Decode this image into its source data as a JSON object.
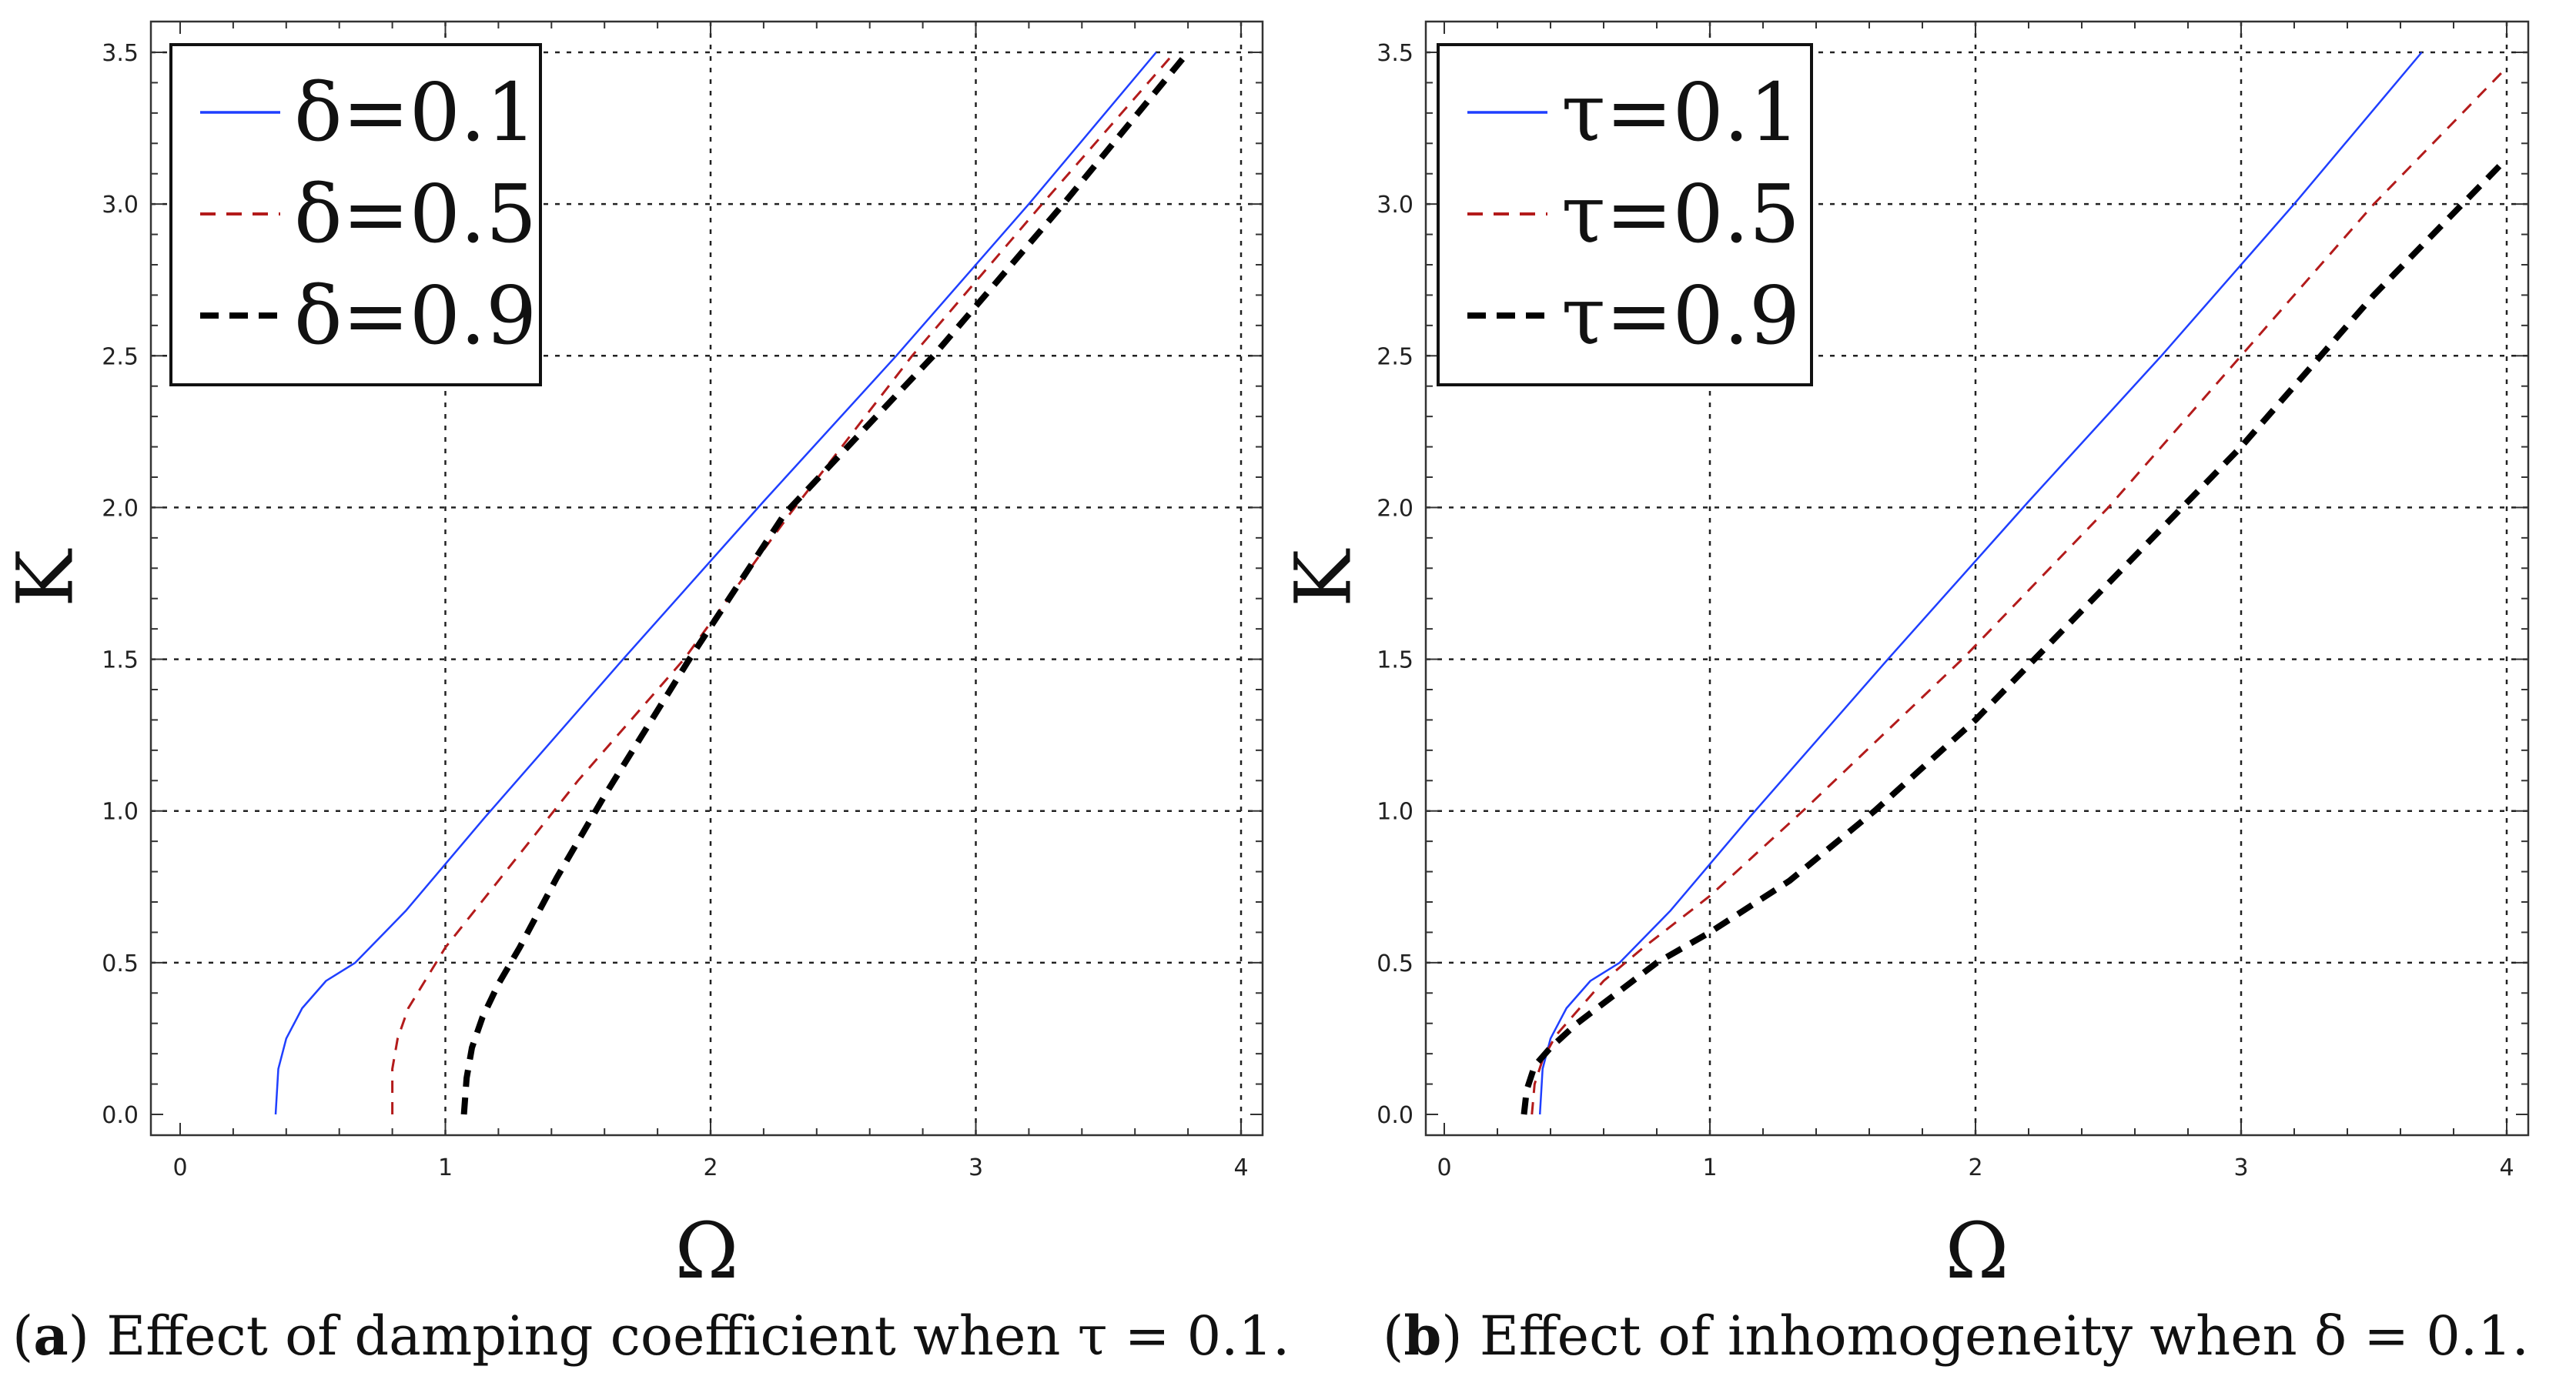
{
  "chart_data": [
    {
      "type": "line",
      "id": "a",
      "caption_label": "a",
      "caption_text": ") Effect of damping coefficient when τ = 0.1.",
      "xlabel": "Ω",
      "ylabel": "K",
      "xlim": [
        0,
        4
      ],
      "ylim": [
        0,
        3.5
      ],
      "xticks": [
        0,
        1,
        2,
        3,
        4
      ],
      "xtick_labels": [
        "0",
        "1",
        "2",
        "3",
        "4"
      ],
      "yticks": [
        0,
        0.5,
        1,
        1.5,
        2,
        2.5,
        3,
        3.5
      ],
      "ytick_labels": [
        "0.0",
        "0.5",
        "1.0",
        "1.5",
        "2.0",
        "2.5",
        "3.0",
        "3.5"
      ],
      "grid": true,
      "legend_position": "top-left",
      "series": [
        {
          "name": "δ=0.1",
          "color": "#1f3fff",
          "style": "solid",
          "width": 2.5,
          "x": [
            0.36,
            0.37,
            0.4,
            0.46,
            0.55,
            0.66,
            0.85,
            1.15,
            1.67,
            2.2,
            2.7,
            3.2,
            3.68
          ],
          "y": [
            0.0,
            0.15,
            0.25,
            0.35,
            0.44,
            0.5,
            0.67,
            0.98,
            1.5,
            2.02,
            2.5,
            3.0,
            3.5
          ]
        },
        {
          "name": "δ=0.5",
          "color": "#b31b1b",
          "style": "dashed",
          "width": 3,
          "x": [
            0.8,
            0.8,
            0.82,
            0.86,
            0.93,
            1.0,
            1.2,
            1.5,
            1.9,
            2.3,
            2.76,
            3.25,
            3.75
          ],
          "y": [
            0.0,
            0.15,
            0.25,
            0.35,
            0.45,
            0.55,
            0.77,
            1.1,
            1.5,
            1.98,
            2.5,
            3.0,
            3.5
          ]
        },
        {
          "name": "δ=0.9",
          "color": "#000000",
          "style": "dashed",
          "width": 8,
          "x": [
            1.07,
            1.08,
            1.1,
            1.14,
            1.2,
            1.28,
            1.42,
            1.6,
            1.92,
            2.28,
            2.84,
            3.33,
            3.8
          ],
          "y": [
            0.0,
            0.12,
            0.22,
            0.32,
            0.43,
            0.55,
            0.78,
            1.05,
            1.5,
            1.98,
            2.5,
            3.0,
            3.5
          ]
        }
      ]
    },
    {
      "type": "line",
      "id": "b",
      "caption_label": "b",
      "caption_text": ") Effect of inhomogeneity when δ = 0.1.",
      "xlabel": "Ω",
      "ylabel": "K",
      "xlim": [
        0,
        4
      ],
      "ylim": [
        0,
        3.5
      ],
      "xticks": [
        0,
        1,
        2,
        3,
        4
      ],
      "xtick_labels": [
        "0",
        "1",
        "2",
        "3",
        "4"
      ],
      "yticks": [
        0,
        0.5,
        1,
        1.5,
        2,
        2.5,
        3,
        3.5
      ],
      "ytick_labels": [
        "0.0",
        "0.5",
        "1.0",
        "1.5",
        "2.0",
        "2.5",
        "3.0",
        "3.5"
      ],
      "grid": true,
      "legend_position": "top-left",
      "series": [
        {
          "name": "τ=0.1",
          "color": "#1f3fff",
          "style": "solid",
          "width": 2.5,
          "x": [
            0.36,
            0.37,
            0.4,
            0.46,
            0.55,
            0.66,
            0.85,
            1.15,
            1.67,
            2.2,
            2.7,
            3.2,
            3.68
          ],
          "y": [
            0.0,
            0.15,
            0.25,
            0.35,
            0.44,
            0.5,
            0.67,
            0.98,
            1.5,
            2.02,
            2.5,
            3.0,
            3.5
          ]
        },
        {
          "name": "τ=0.5",
          "color": "#b31b1b",
          "style": "dashed",
          "width": 3,
          "x": [
            0.33,
            0.34,
            0.37,
            0.42,
            0.5,
            0.6,
            0.75,
            1.0,
            1.35,
            1.95,
            2.5,
            3.0,
            3.5,
            4.0
          ],
          "y": [
            0.0,
            0.1,
            0.18,
            0.26,
            0.34,
            0.44,
            0.55,
            0.72,
            1.0,
            1.5,
            2.0,
            2.5,
            3.0,
            3.45
          ]
        },
        {
          "name": "τ=0.9",
          "color": "#000000",
          "style": "dashed",
          "width": 8,
          "x": [
            0.3,
            0.31,
            0.34,
            0.4,
            0.5,
            0.65,
            0.8,
            1.0,
            1.3,
            1.62,
            2.0,
            2.5,
            3.0,
            3.5,
            4.0
          ],
          "y": [
            0.0,
            0.08,
            0.16,
            0.22,
            0.3,
            0.4,
            0.5,
            0.6,
            0.77,
            1.0,
            1.3,
            1.75,
            2.2,
            2.7,
            3.15
          ]
        }
      ]
    }
  ]
}
